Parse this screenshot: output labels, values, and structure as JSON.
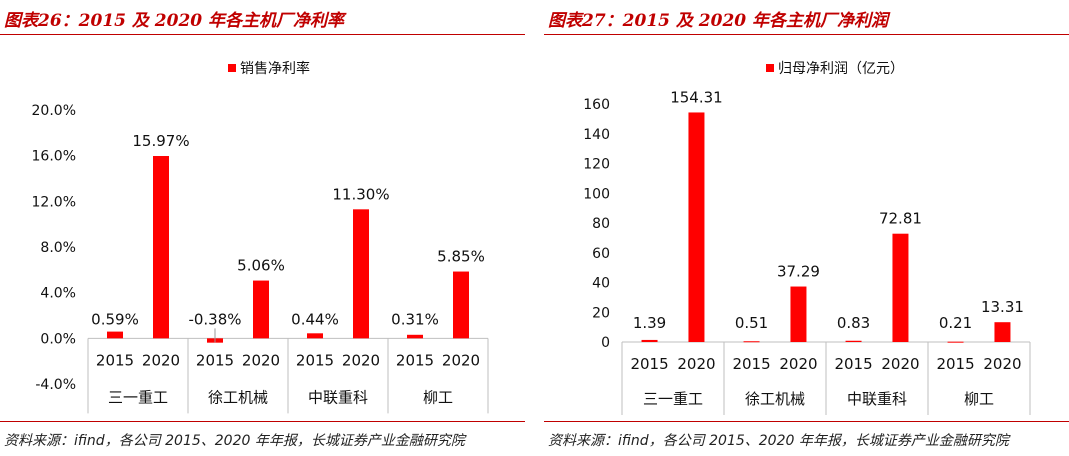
{
  "left": {
    "figure_title": "图表26：2015 及 2020 年各主机厂净利率",
    "source": "资料来源：ifind，各公司 2015、2020 年年报，长城证券产业金融研究院"
  },
  "right": {
    "figure_title": "图表27：2015 及 2020 年各主机厂净利润",
    "source": "资料来源：ifind，各公司 2015、2020 年年报，长城证券产业金融研究院"
  },
  "chart_data": [
    {
      "type": "bar",
      "legend": "销售净利率",
      "legend_position": "top-center",
      "bar_color": "#ff0000",
      "ylim": [
        -4.0,
        20.0
      ],
      "yticks": [
        "-4.0%",
        "0.0%",
        "4.0%",
        "8.0%",
        "12.0%",
        "16.0%",
        "20.0%"
      ],
      "ytick_values": [
        -4,
        0,
        4,
        8,
        12,
        16,
        20
      ],
      "grid": false,
      "groups": [
        {
          "name": "三一重工",
          "bars": [
            {
              "year": "2015",
              "value": 0.59,
              "label": "0.59%"
            },
            {
              "year": "2020",
              "value": 15.97,
              "label": "15.97%"
            }
          ]
        },
        {
          "name": "徐工机械",
          "bars": [
            {
              "year": "2015",
              "value": -0.38,
              "label": "-0.38%"
            },
            {
              "year": "2020",
              "value": 5.06,
              "label": "5.06%"
            }
          ]
        },
        {
          "name": "中联重科",
          "bars": [
            {
              "year": "2015",
              "value": 0.44,
              "label": "0.44%"
            },
            {
              "year": "2020",
              "value": 11.3,
              "label": "11.30%"
            }
          ]
        },
        {
          "name": "柳工",
          "bars": [
            {
              "year": "2015",
              "value": 0.31,
              "label": "0.31%"
            },
            {
              "year": "2020",
              "value": 5.85,
              "label": "5.85%"
            }
          ]
        }
      ]
    },
    {
      "type": "bar",
      "legend": "归母净利润（亿元）",
      "legend_position": "top-center",
      "bar_color": "#ff0000",
      "ylim": [
        0,
        160
      ],
      "yticks": [
        "0",
        "20",
        "40",
        "60",
        "80",
        "100",
        "120",
        "140",
        "160"
      ],
      "ytick_values": [
        0,
        20,
        40,
        60,
        80,
        100,
        120,
        140,
        160
      ],
      "grid": false,
      "groups": [
        {
          "name": "三一重工",
          "bars": [
            {
              "year": "2015",
              "value": 1.39,
              "label": "1.39"
            },
            {
              "year": "2020",
              "value": 154.31,
              "label": "154.31"
            }
          ]
        },
        {
          "name": "徐工机械",
          "bars": [
            {
              "year": "2015",
              "value": 0.51,
              "label": "0.51"
            },
            {
              "year": "2020",
              "value": 37.29,
              "label": "37.29"
            }
          ]
        },
        {
          "name": "中联重科",
          "bars": [
            {
              "year": "2015",
              "value": 0.83,
              "label": "0.83"
            },
            {
              "year": "2020",
              "value": 72.81,
              "label": "72.81"
            }
          ]
        },
        {
          "name": "柳工",
          "bars": [
            {
              "year": "2015",
              "value": 0.21,
              "label": "0.21"
            },
            {
              "year": "2020",
              "value": 13.31,
              "label": "13.31"
            }
          ]
        }
      ]
    }
  ]
}
